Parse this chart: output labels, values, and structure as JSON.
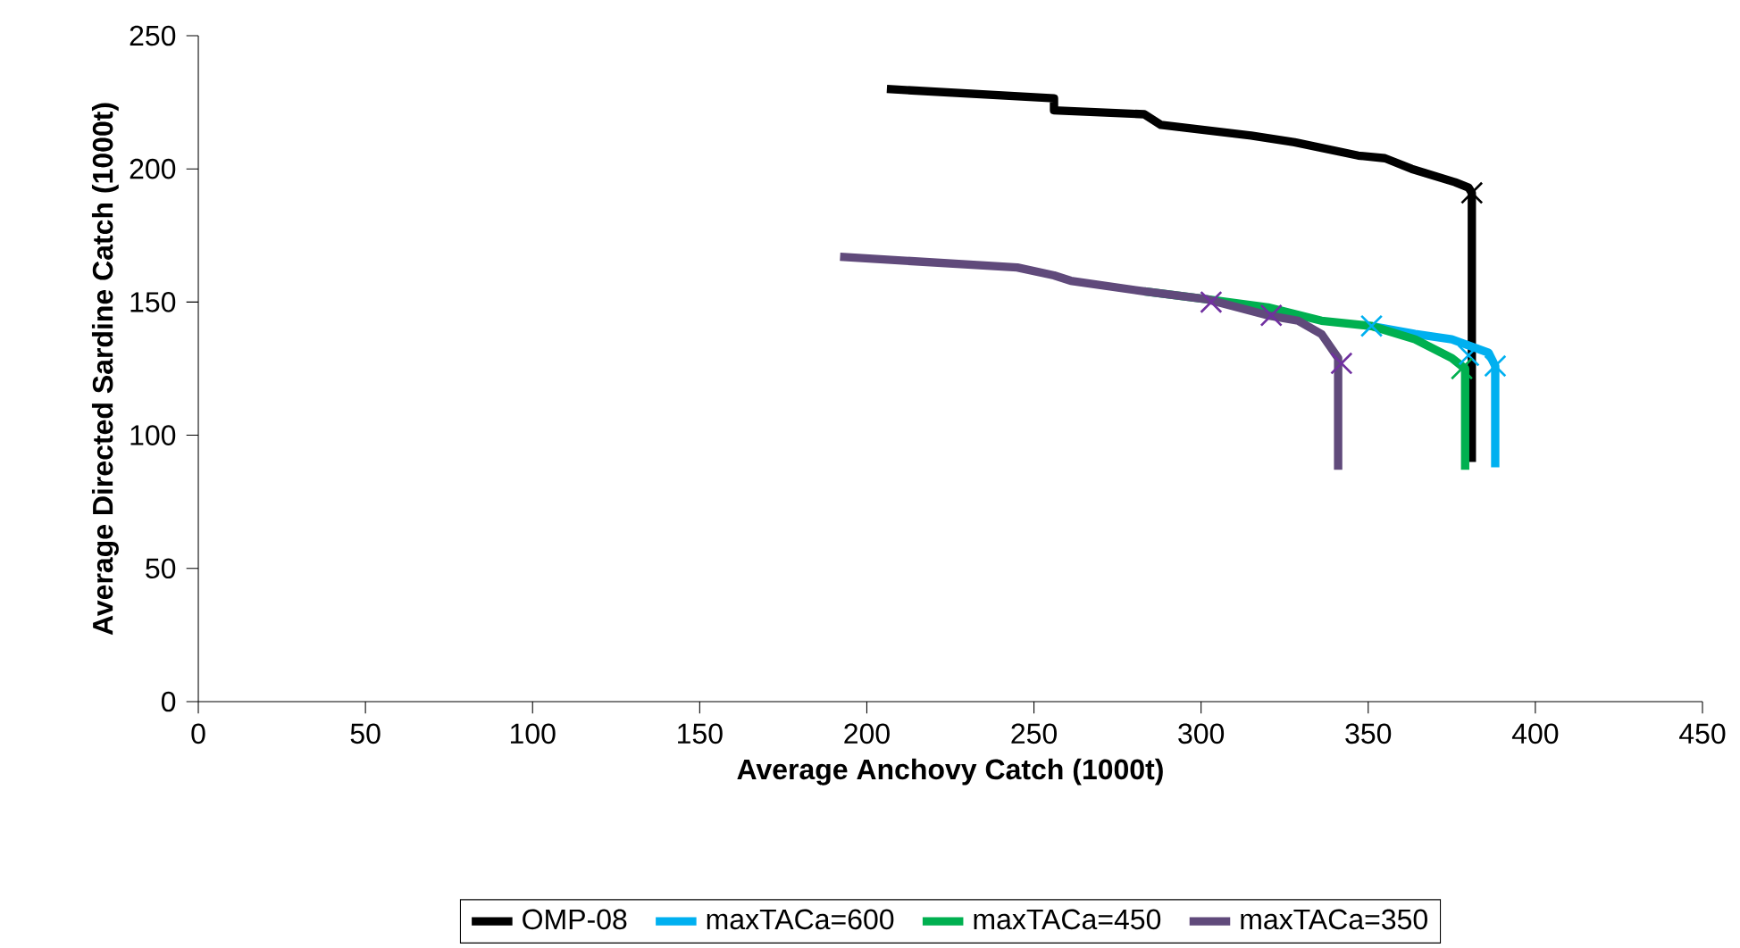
{
  "chart_data": {
    "type": "line",
    "xlabel": "Average Anchovy Catch (1000t)",
    "ylabel": "Average Directed Sardine Catch (1000t)",
    "xlim": [
      0,
      450
    ],
    "ylim": [
      0,
      250
    ],
    "xticks": [
      0,
      50,
      100,
      150,
      200,
      250,
      300,
      350,
      400,
      450
    ],
    "yticks": [
      0,
      50,
      100,
      150,
      200,
      250
    ],
    "legend": "bottom",
    "marker": "none",
    "line_style": "solid",
    "series": [
      {
        "name": "OMP-08",
        "color": "#000000",
        "x": [
          206,
          256,
          256,
          283,
          288,
          315,
          328,
          347,
          355,
          363,
          376,
          380,
          381,
          381
        ],
        "values": [
          230,
          226.5,
          222,
          220.5,
          216.5,
          212.5,
          210,
          205,
          204,
          200,
          195,
          193,
          191,
          90
        ]
      },
      {
        "name": "maxTACa=600",
        "color": "#00b0f0",
        "x": [
          351,
          364,
          375,
          386,
          388,
          388
        ],
        "values": [
          141,
          138,
          136,
          131,
          126,
          88
        ]
      },
      {
        "name": "maxTACa=450",
        "color": "#00b050",
        "x": [
          283,
          302,
          320,
          336,
          351,
          364,
          375,
          379,
          379
        ],
        "values": [
          154,
          151,
          148,
          143,
          141,
          136,
          129,
          125,
          87
        ]
      },
      {
        "name": "maxTACa=350",
        "color": "#604a7b",
        "x": [
          192,
          245,
          256,
          261,
          283,
          302,
          320,
          329,
          336,
          341,
          341
        ],
        "values": [
          167,
          163,
          160,
          158,
          154,
          151,
          145,
          143,
          138,
          129,
          87
        ]
      },
      {
        "type": "scatter",
        "marker": "cross",
        "color": "#000000",
        "x": [
          381
        ],
        "values": [
          191
        ]
      },
      {
        "type": "scatter",
        "marker": "cross",
        "color": "#00b0f0",
        "x": [
          351,
          380,
          388
        ],
        "values": [
          141,
          130,
          126
        ]
      },
      {
        "type": "scatter",
        "marker": "cross",
        "color": "#00b050",
        "x": [
          378
        ],
        "values": [
          125
        ]
      },
      {
        "type": "scatter",
        "marker": "cross",
        "color": "#7030a0",
        "x": [
          303,
          321,
          342
        ],
        "values": [
          150,
          145,
          127
        ]
      }
    ]
  }
}
